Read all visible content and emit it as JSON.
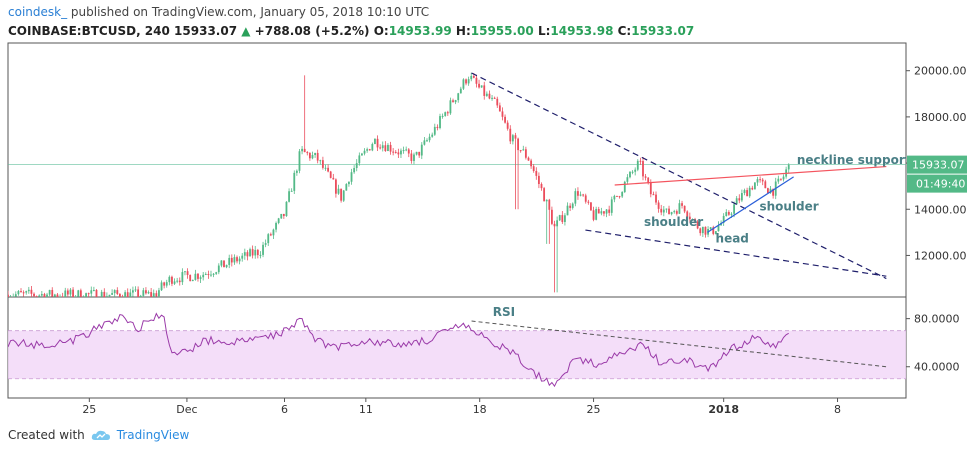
{
  "header": {
    "author": "coindesk_",
    "published": " published on TradingView.com, January 05, 2018 10:10 UTC",
    "symbol": "COINBASE:BTCUSD, 240",
    "last": "15933.07",
    "arrow": "▲",
    "change": "+788.08 (+5.2%)",
    "o_label": "O:",
    "o_val": "14953.99",
    "h_label": "H:",
    "h_val": "15955.00",
    "l_label": "L:",
    "l_val": "14953.98",
    "c_label": "C:",
    "c_val": "15933.07"
  },
  "footer": {
    "created": "Created with",
    "brand": "TradingView"
  },
  "colors": {
    "up": "#53b987",
    "down": "#eb4d5c",
    "trend": "#1f1f6b",
    "neckline": "#f4545e",
    "shoulderline": "#2b5fd9",
    "rsi": "#9a3aa8",
    "rsi_band": "#f1d6f7",
    "price_line": "#5fbf9a"
  },
  "chart_data": [
    {
      "type": "candlestick",
      "yticks": [
        12000,
        14000,
        16000,
        18000,
        20000
      ],
      "ylim": [
        10200,
        21200
      ],
      "xlim": [
        0,
        49
      ],
      "xtick_labels": [
        "25",
        "Dec",
        "6",
        "11",
        "18",
        "25",
        "2018",
        "8"
      ],
      "xtick_pos": [
        5,
        11,
        17,
        22,
        29,
        36,
        44,
        51
      ],
      "last_price_label": "15933.07",
      "countdown_label": "01:49:40",
      "key_points": [
        {
          "t": 0,
          "price": 10300
        },
        {
          "t": 9,
          "price": 10300
        },
        {
          "t": 10,
          "price": 11000
        },
        {
          "t": 12,
          "price": 11200
        },
        {
          "t": 14,
          "price": 11800
        },
        {
          "t": 15.5,
          "price": 12200
        },
        {
          "t": 17,
          "price": 13800
        },
        {
          "t": 18,
          "price": 16500
        },
        {
          "t": 19,
          "price": 16200
        },
        {
          "t": 20.5,
          "price": 14500
        },
        {
          "t": 21,
          "price": 15500
        },
        {
          "t": 22.5,
          "price": 17000
        },
        {
          "t": 24,
          "price": 16500
        },
        {
          "t": 25,
          "price": 16200
        },
        {
          "t": 26,
          "price": 17200
        },
        {
          "t": 27,
          "price": 18300
        },
        {
          "t": 28.3,
          "price": 19800
        },
        {
          "t": 29,
          "price": 19200
        },
        {
          "t": 30,
          "price": 18500
        },
        {
          "t": 31,
          "price": 17000
        },
        {
          "t": 32,
          "price": 16200
        },
        {
          "t": 33,
          "price": 14500
        },
        {
          "t": 33.6,
          "price": 13200
        },
        {
          "t": 34.2,
          "price": 13800
        },
        {
          "t": 35,
          "price": 14800
        },
        {
          "t": 36,
          "price": 13700
        },
        {
          "t": 37,
          "price": 14100
        },
        {
          "t": 38,
          "price": 15200
        },
        {
          "t": 38.8,
          "price": 16000
        },
        {
          "t": 39.5,
          "price": 14700
        },
        {
          "t": 40.5,
          "price": 13800
        },
        {
          "t": 41.5,
          "price": 14200
        },
        {
          "t": 42.3,
          "price": 13300
        },
        {
          "t": 43.2,
          "price": 13000
        },
        {
          "t": 44,
          "price": 13500
        },
        {
          "t": 45,
          "price": 14500
        },
        {
          "t": 46,
          "price": 15200
        },
        {
          "t": 47,
          "price": 14800
        },
        {
          "t": 47.6,
          "price": 15300
        },
        {
          "t": 48,
          "price": 15933
        }
      ],
      "spikes": [
        {
          "t": 18.2,
          "high": 19800
        },
        {
          "t": 31.3,
          "low": 14000
        },
        {
          "t": 33.2,
          "low": 12500
        },
        {
          "t": 33.7,
          "low": 10400
        }
      ],
      "trendlines": [
        {
          "name": "upper-wedge",
          "t1": 28.5,
          "p1": 19900,
          "t2": 54,
          "p2": 11000,
          "style": "dashed"
        },
        {
          "name": "lower-wedge",
          "t1": 35.5,
          "p1": 13100,
          "t2": 54,
          "p2": 11100,
          "style": "dashed"
        },
        {
          "name": "neckline",
          "t1": 37.3,
          "p1": 15050,
          "t2": 54,
          "p2": 15850,
          "style": "solid"
        },
        {
          "name": "shoulder-support",
          "t1": 43,
          "p1": 13000,
          "t2": 48.3,
          "p2": 15400,
          "style": "solid"
        }
      ],
      "annotations": [
        {
          "text": "neckline support",
          "t": 48.5,
          "price": 15950
        },
        {
          "text": "shoulder",
          "t": 46.2,
          "price": 13950
        },
        {
          "text": "shoulder",
          "t": 39.1,
          "price": 13270
        },
        {
          "text": "head",
          "t": 43.5,
          "price": 12550
        }
      ]
    },
    {
      "type": "line",
      "series_label": "RSI",
      "yticks": [
        40,
        80
      ],
      "ytick_labels": [
        "40.0000",
        "80.0000"
      ],
      "ylim": [
        14,
        98
      ],
      "band": [
        30,
        70
      ],
      "key_points": [
        {
          "t": 0,
          "v": 60
        },
        {
          "t": 2,
          "v": 58
        },
        {
          "t": 4,
          "v": 62
        },
        {
          "t": 6,
          "v": 75
        },
        {
          "t": 7,
          "v": 82
        },
        {
          "t": 8,
          "v": 72
        },
        {
          "t": 9.5,
          "v": 85
        },
        {
          "t": 10,
          "v": 50
        },
        {
          "t": 11,
          "v": 52
        },
        {
          "t": 12,
          "v": 62
        },
        {
          "t": 14,
          "v": 60
        },
        {
          "t": 16,
          "v": 65
        },
        {
          "t": 17,
          "v": 70
        },
        {
          "t": 18,
          "v": 80
        },
        {
          "t": 19,
          "v": 62
        },
        {
          "t": 20,
          "v": 56
        },
        {
          "t": 22,
          "v": 62
        },
        {
          "t": 24,
          "v": 58
        },
        {
          "t": 26,
          "v": 63
        },
        {
          "t": 28,
          "v": 75
        },
        {
          "t": 29,
          "v": 66
        },
        {
          "t": 31,
          "v": 52
        },
        {
          "t": 32,
          "v": 38
        },
        {
          "t": 33.5,
          "v": 25
        },
        {
          "t": 35,
          "v": 48
        },
        {
          "t": 36,
          "v": 42
        },
        {
          "t": 38,
          "v": 52
        },
        {
          "t": 39,
          "v": 58
        },
        {
          "t": 40,
          "v": 45
        },
        {
          "t": 42,
          "v": 44
        },
        {
          "t": 43.2,
          "v": 38
        },
        {
          "t": 44.5,
          "v": 55
        },
        {
          "t": 46,
          "v": 65
        },
        {
          "t": 47,
          "v": 56
        },
        {
          "t": 48,
          "v": 67
        }
      ],
      "trendline": {
        "t1": 28.5,
        "v1": 78,
        "t2": 54,
        "v2": 40
      }
    }
  ]
}
